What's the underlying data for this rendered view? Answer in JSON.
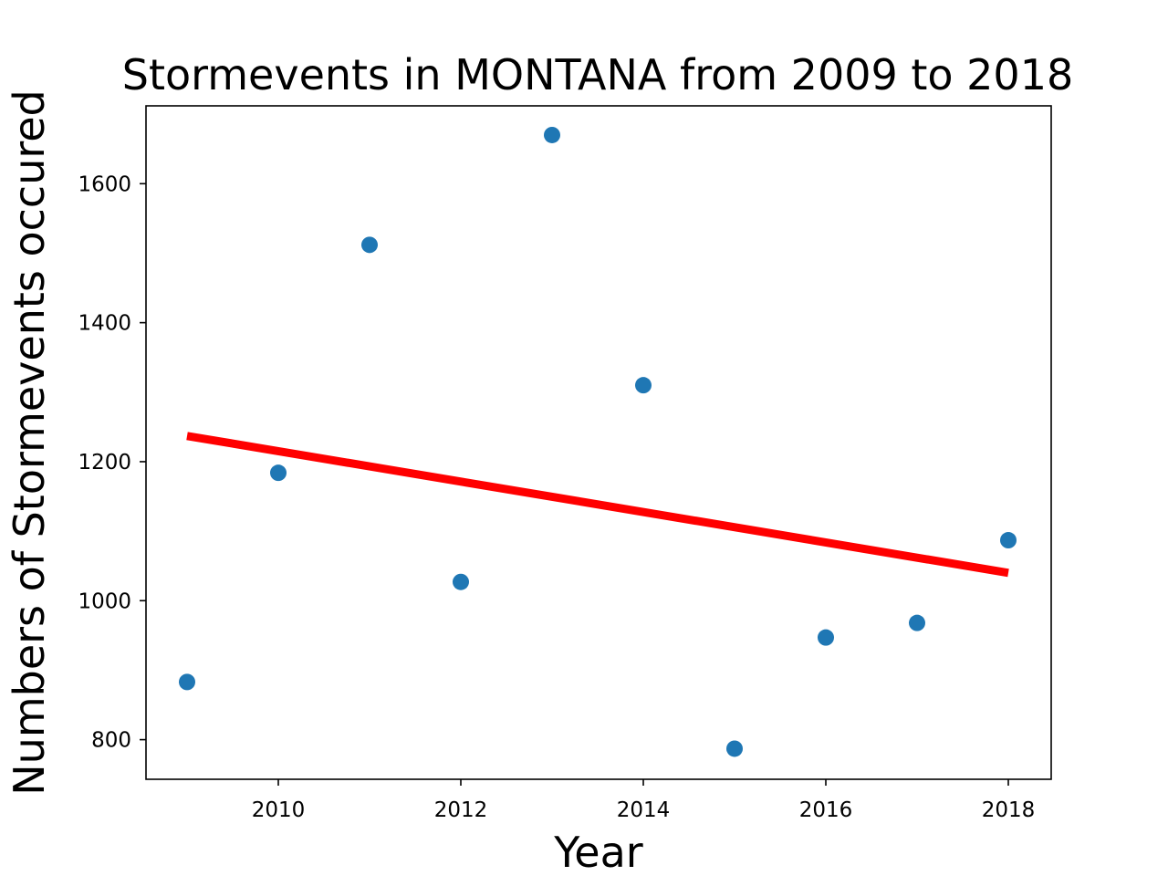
{
  "chart_data": {
    "type": "scatter",
    "title": "Stormevents in MONTANA from 2009 to 2018",
    "xlabel": "Year",
    "ylabel": "Numbers of Stormevents occured",
    "xlim": [
      2008.55,
      2018.47
    ],
    "ylim": [
      743,
      1712
    ],
    "xticks": [
      2010,
      2012,
      2014,
      2016,
      2018
    ],
    "yticks": [
      800,
      1000,
      1200,
      1400,
      1600
    ],
    "grid": false,
    "series": [
      {
        "kind": "scatter",
        "color": "#1f77b4",
        "points": [
          {
            "x": 2009,
            "y": 883
          },
          {
            "x": 2010,
            "y": 1184
          },
          {
            "x": 2011,
            "y": 1512
          },
          {
            "x": 2012,
            "y": 1027
          },
          {
            "x": 2013,
            "y": 1670
          },
          {
            "x": 2014,
            "y": 1310
          },
          {
            "x": 2015,
            "y": 787
          },
          {
            "x": 2016,
            "y": 947
          },
          {
            "x": 2017,
            "y": 968
          },
          {
            "x": 2018,
            "y": 1087
          }
        ]
      },
      {
        "kind": "line",
        "color": "#ff0000",
        "points": [
          {
            "x": 2009,
            "y": 1237
          },
          {
            "x": 2018,
            "y": 1040
          }
        ]
      }
    ]
  }
}
